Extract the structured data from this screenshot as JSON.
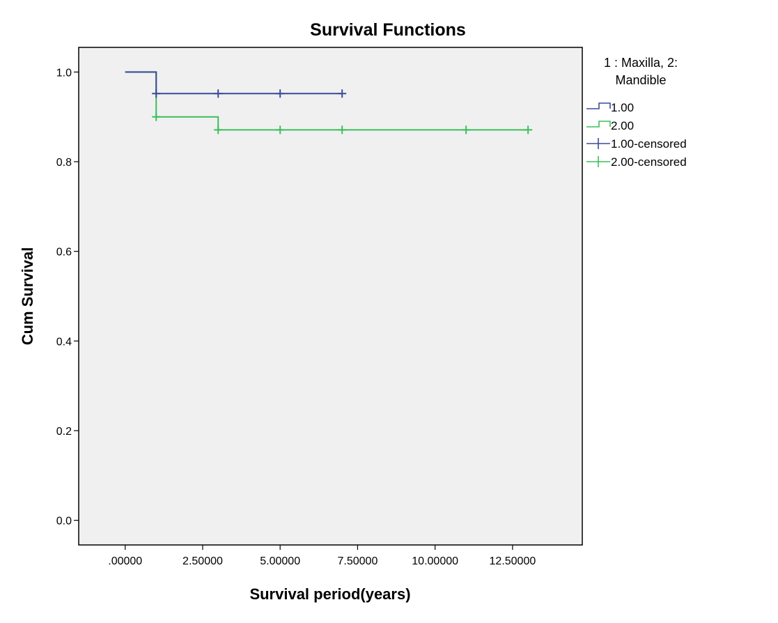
{
  "chart_data": {
    "type": "line",
    "title": "Survival Functions",
    "xlabel": "Survival period(years)",
    "ylabel": "Cum Survival",
    "xlim": [
      -1.5,
      14.75
    ],
    "ylim": [
      -0.055,
      1.055
    ],
    "xticks": [
      0,
      2.5,
      5,
      7.5,
      10,
      12.5
    ],
    "xtick_labels": [
      ".00000",
      "2.50000",
      "5.00000",
      "7.50000",
      "10.00000",
      "12.50000"
    ],
    "yticks": [
      0.0,
      0.2,
      0.4,
      0.6,
      0.8,
      1.0
    ],
    "ytick_labels": [
      "0.0",
      "0.2",
      "0.4",
      "0.6",
      "0.8",
      "1.0"
    ],
    "plot_background": "#f0f0f0",
    "legend": {
      "position": "right",
      "title_lines": [
        "1 : Maxilla, 2:",
        "Mandible"
      ],
      "entries": [
        {
          "label": "1.00",
          "kind": "step",
          "series": 0
        },
        {
          "label": "2.00",
          "kind": "step",
          "series": 1
        },
        {
          "label": "1.00-censored",
          "kind": "censored",
          "series": 0
        },
        {
          "label": "2.00-censored",
          "kind": "censored",
          "series": 1
        }
      ]
    },
    "series": [
      {
        "name": "1.00",
        "color": "#3b4a9a",
        "steps": [
          [
            0,
            1.0
          ],
          [
            1,
            0.952
          ],
          [
            7,
            0.952
          ]
        ],
        "censored": [
          [
            1,
            0.952
          ],
          [
            3,
            0.952
          ],
          [
            5,
            0.952
          ],
          [
            7,
            0.952
          ]
        ]
      },
      {
        "name": "2.00",
        "color": "#3bbf5a",
        "steps": [
          [
            0,
            1.0
          ],
          [
            1,
            0.9
          ],
          [
            3,
            0.871
          ],
          [
            13,
            0.871
          ]
        ],
        "censored": [
          [
            1,
            0.9
          ],
          [
            3,
            0.871
          ],
          [
            5,
            0.871
          ],
          [
            7,
            0.871
          ],
          [
            11,
            0.871
          ],
          [
            13,
            0.871
          ]
        ]
      }
    ]
  }
}
